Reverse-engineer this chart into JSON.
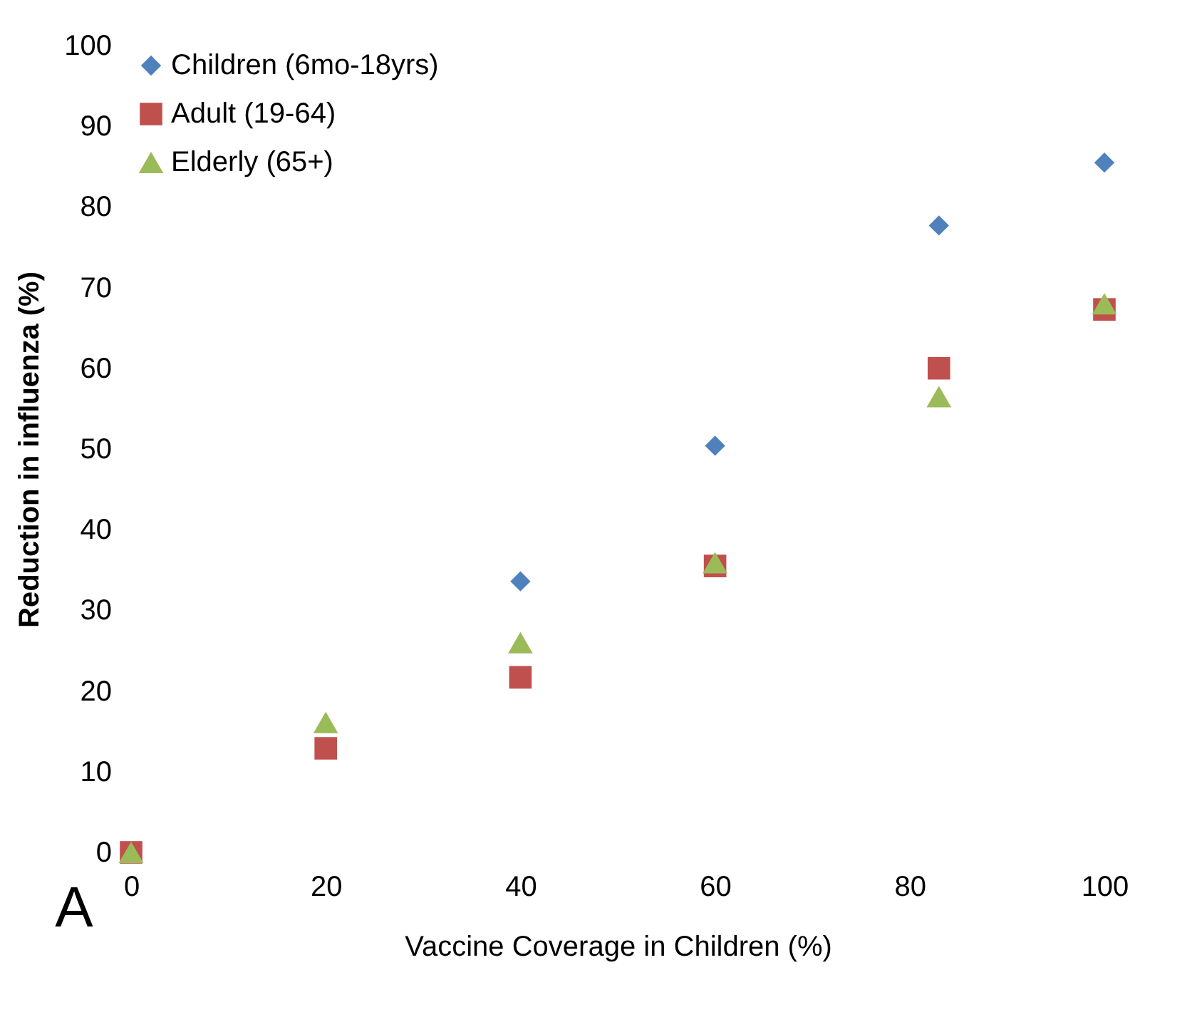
{
  "chart_data": {
    "type": "scatter",
    "xlabel": "Vaccine Coverage in Children (%)",
    "ylabel": "Reduction in influenza (%)",
    "annotations": [
      "A"
    ],
    "x": [
      0,
      20,
      40,
      60,
      83,
      100
    ],
    "series": [
      {
        "name": "Children (6mo-18yrs)",
        "color": "#4f81bd",
        "marker": "diamond",
        "values": [
          null,
          null,
          33.6,
          50.4,
          77.7,
          85.5
        ]
      },
      {
        "name": "Adult (19-64)",
        "color": "#c0504d",
        "marker": "square",
        "values": [
          0,
          12.9,
          21.7,
          35.5,
          60,
          67.3
        ]
      },
      {
        "name": "Elderly (65+)",
        "color": "#9bbb59",
        "marker": "triangle",
        "values": [
          0,
          16.1,
          26,
          35.9,
          56.5,
          68
        ]
      }
    ],
    "xlim": [
      0,
      100
    ],
    "xticks": [
      0,
      20,
      40,
      60,
      80,
      100
    ],
    "ylim": [
      0,
      100
    ],
    "yticks": [
      0,
      10,
      20,
      30,
      40,
      50,
      60,
      70,
      80,
      90,
      100
    ],
    "grid": false,
    "legend": "top left"
  }
}
